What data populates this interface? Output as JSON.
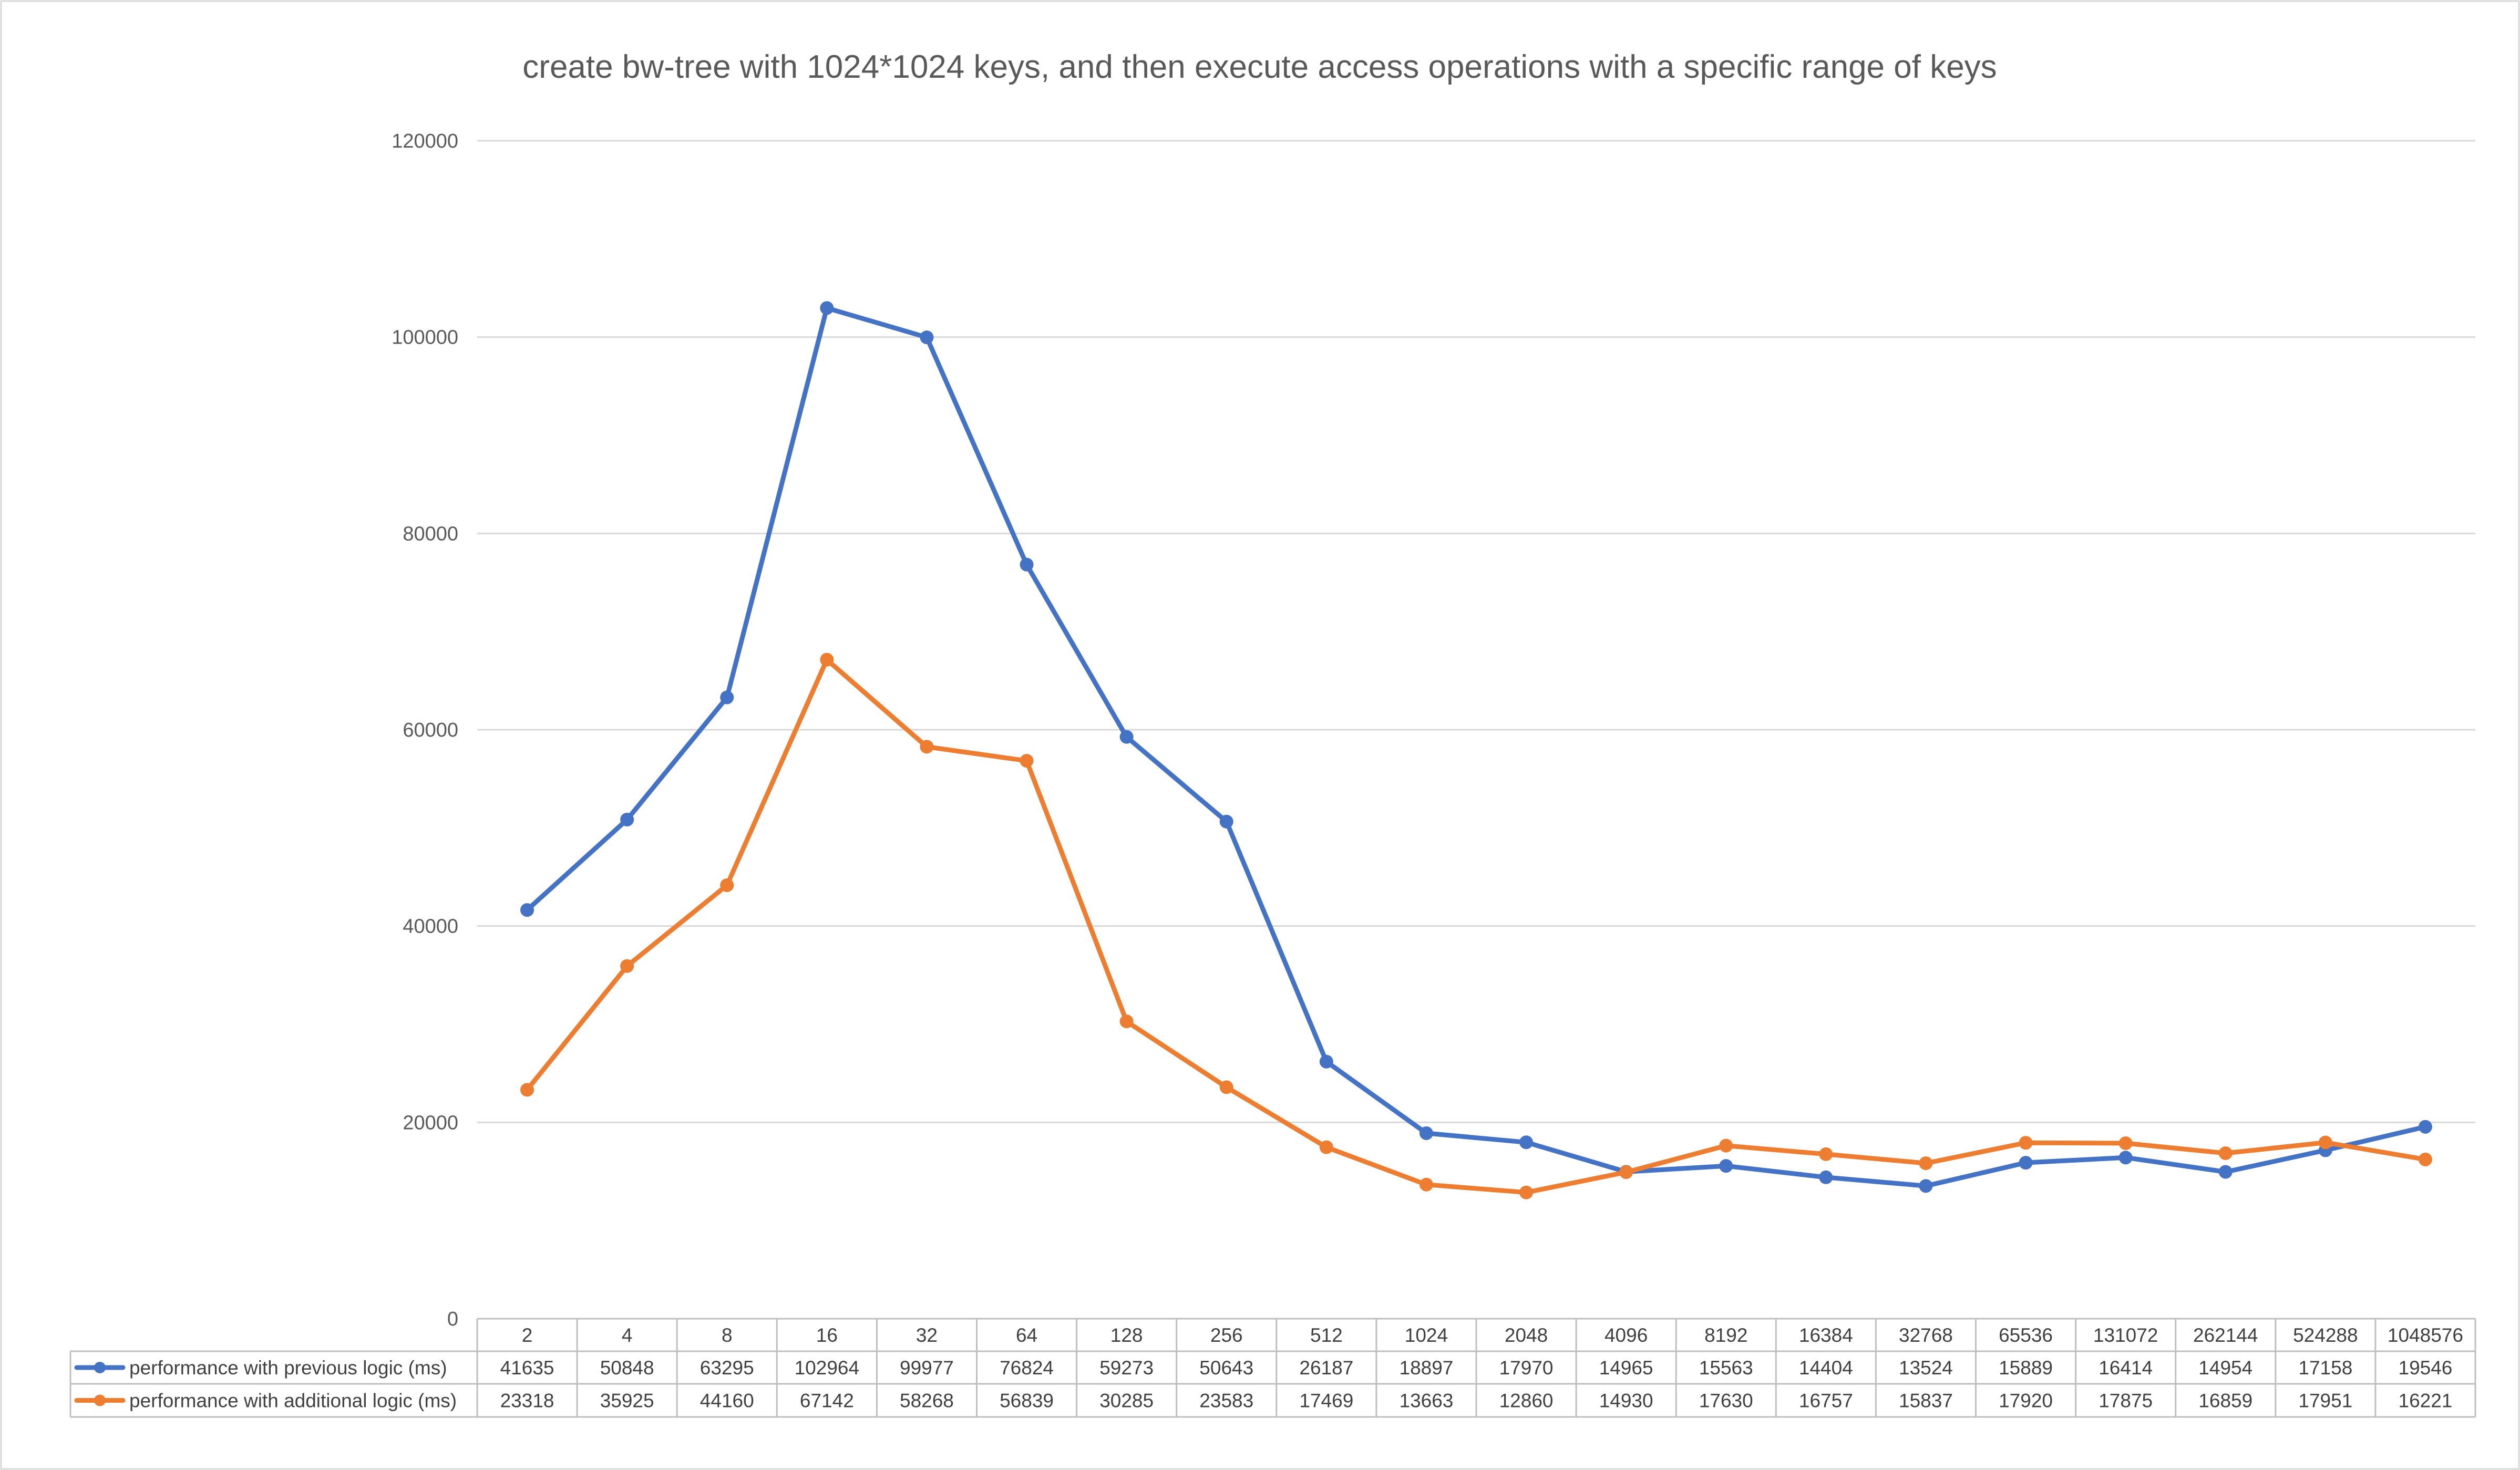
{
  "chart_data": {
    "type": "line",
    "title": "create bw-tree with 1024*1024 keys, and then execute access operations with a specific range of keys",
    "xlabel": "",
    "ylabel": "",
    "ylim": [
      0,
      120000
    ],
    "yticks": [
      0,
      20000,
      40000,
      60000,
      80000,
      100000,
      120000
    ],
    "grid": true,
    "legend": "data-table",
    "categories": [
      "2",
      "4",
      "8",
      "16",
      "32",
      "64",
      "128",
      "256",
      "512",
      "1024",
      "2048",
      "4096",
      "8192",
      "16384",
      "32768",
      "65536",
      "131072",
      "262144",
      "524288",
      "1048576"
    ],
    "series": [
      {
        "name": "performance with previous logic (ms)",
        "color": "#4472C4",
        "values": [
          41635,
          50848,
          63295,
          102964,
          99977,
          76824,
          59273,
          50643,
          26187,
          18897,
          17970,
          14965,
          15563,
          14404,
          13524,
          15889,
          16414,
          14954,
          17158,
          19546
        ]
      },
      {
        "name": "performance with additional logic (ms)",
        "color": "#ED7D31",
        "values": [
          23318,
          35925,
          44160,
          67142,
          58268,
          56839,
          30285,
          23583,
          17469,
          13663,
          12860,
          14930,
          17630,
          16757,
          15837,
          17920,
          17875,
          16859,
          17951,
          16221
        ]
      }
    ]
  }
}
